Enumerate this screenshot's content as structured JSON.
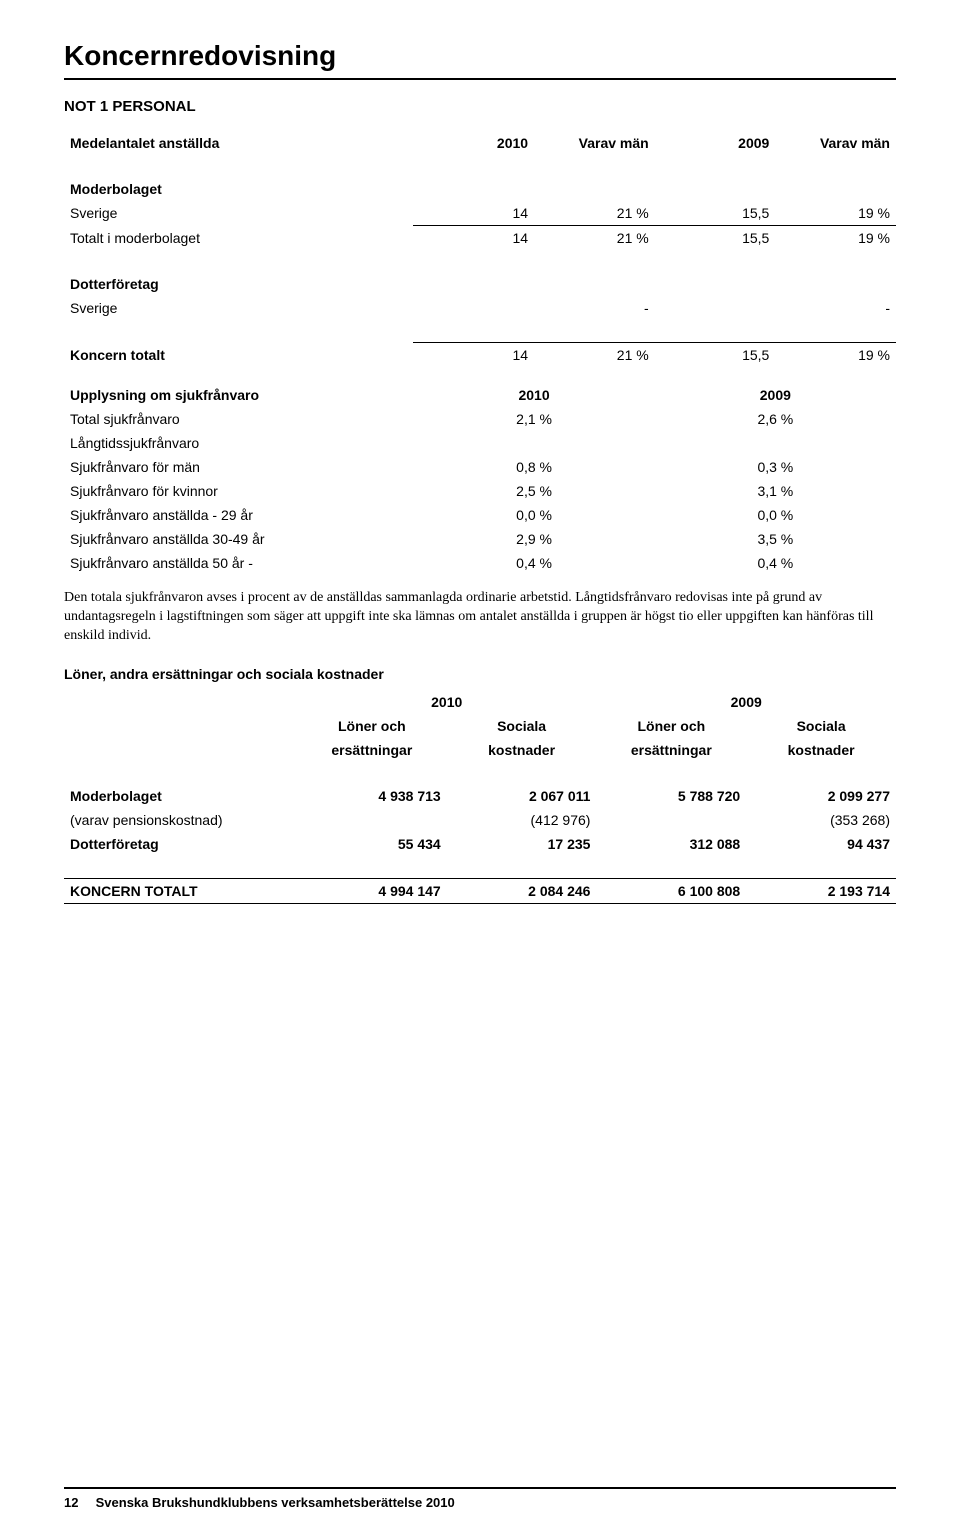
{
  "h1": "Koncernredovisning",
  "note_title": "NOT 1 PERSONAL",
  "emp": {
    "row_header": "Medelantalet anställda",
    "year_a": "2010",
    "col_a": "Varav män",
    "year_b": "2009",
    "col_b": "Varav män",
    "grp1_title": "Moderbolaget",
    "grp1_rows": [
      {
        "label": "Sverige",
        "v1": "14",
        "v2": "21 %",
        "v3": "15,5",
        "v4": "19 %"
      }
    ],
    "grp1_total": {
      "label": "Totalt i moderbolaget",
      "v1": "14",
      "v2": "21 %",
      "v3": "15,5",
      "v4": "19 %"
    },
    "grp2_title": "Dotterföretag",
    "grp2_rows": [
      {
        "label": "Sverige",
        "v1": "",
        "v2": "-",
        "v3": "",
        "v4": "-"
      }
    ],
    "grand": {
      "label": "Koncern totalt",
      "v1": "14",
      "v2": "21 %",
      "v3": "15,5",
      "v4": "19 %"
    }
  },
  "sick": {
    "title": "Upplysning om sjukfrånvaro",
    "year_a": "2010",
    "year_b": "2009",
    "rows": [
      {
        "label": "Total sjukfrånvaro",
        "v1": "2,1 %",
        "v2": "2,6 %"
      },
      {
        "label": "Långtidssjukfrånvaro",
        "v1": "",
        "v2": ""
      },
      {
        "label": "Sjukfrånvaro för män",
        "v1": "0,8 %",
        "v2": "0,3 %"
      },
      {
        "label": "Sjukfrånvaro för kvinnor",
        "v1": "2,5 %",
        "v2": "3,1 %"
      },
      {
        "label": "Sjukfrånvaro anställda - 29 år",
        "v1": "0,0 %",
        "v2": "0,0 %"
      },
      {
        "label": "Sjukfrånvaro anställda 30-49 år",
        "v1": "2,9 %",
        "v2": "3,5 %"
      },
      {
        "label": "Sjukfrånvaro anställda 50 år -",
        "v1": "0,4 %",
        "v2": "0,4 %"
      }
    ]
  },
  "para": "Den totala sjukfrånvaron avses i procent av de anställdas sammanlagda ordinarie arbetstid. Långtidsfrånvaro redovisas inte på grund av undantagsregeln i lagstiftningen som säger att uppgift inte ska lämnas om antalet anställda i gruppen är högst tio eller uppgiften kan hänföras till enskild individ.",
  "sal": {
    "title": "Löner, andra ersättningar och sociala kostnader",
    "year_a": "2010",
    "year_b": "2009",
    "col1a": "Löner och",
    "col1b": "ersättningar",
    "col2a": "Sociala",
    "col2b": "kostnader",
    "col3a": "Löner och",
    "col3b": "ersättningar",
    "col4a": "Sociala",
    "col4b": "kostnader",
    "rows": [
      {
        "label": "Moderbolaget",
        "v1": "4 938 713",
        "v2": "2 067 011",
        "v3": "5 788 720",
        "v4": "2 099 277",
        "bold": true
      },
      {
        "label": "(varav pensionskostnad)",
        "v1": "",
        "v2": "(412 976)",
        "v3": "",
        "v4": "(353 268)",
        "bold": false
      },
      {
        "label": "Dotterföretag",
        "v1": "55 434",
        "v2": "17 235",
        "v3": "312 088",
        "v4": "94 437",
        "bold": true
      }
    ],
    "total": {
      "label": "KONCERN TOTALT",
      "v1": "4 994 147",
      "v2": "2 084 246",
      "v3": "6 100 808",
      "v4": "2 193 714"
    }
  },
  "footer": {
    "page": "12",
    "text": "Svenska Brukshundklubbens verksamhetsberättelse 2010"
  }
}
